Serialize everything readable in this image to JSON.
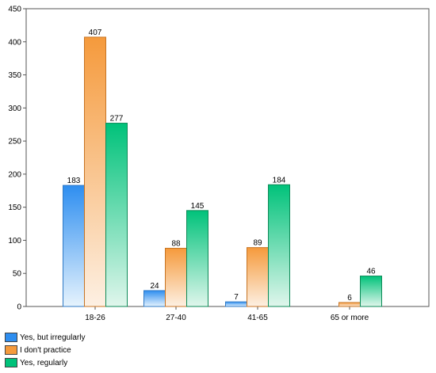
{
  "chart_data": {
    "type": "bar",
    "title": "",
    "xlabel": "",
    "ylabel": "",
    "categories": [
      "18-26",
      "27-40",
      "41-65",
      "65 or more"
    ],
    "ylim": [
      0,
      450
    ],
    "yticks": [
      0,
      50,
      100,
      150,
      200,
      250,
      300,
      350,
      400,
      450
    ],
    "series": [
      {
        "name": "Yes, but irregularly",
        "values": [
          183,
          24,
          7,
          null
        ],
        "color": "#2e8ef0",
        "light": "#e6f3fd",
        "border": "#2f79c4"
      },
      {
        "name": "I don't practice",
        "values": [
          407,
          88,
          89,
          6
        ],
        "color": "#f59a3c",
        "light": "#fdf0e3",
        "border": "#c77424"
      },
      {
        "name": "Yes, regularly",
        "values": [
          277,
          145,
          184,
          46
        ],
        "color": "#00c27a",
        "light": "#e0f6ec",
        "border": "#0d8a57"
      }
    ],
    "grid": false,
    "legend_position": "bottom-left"
  }
}
